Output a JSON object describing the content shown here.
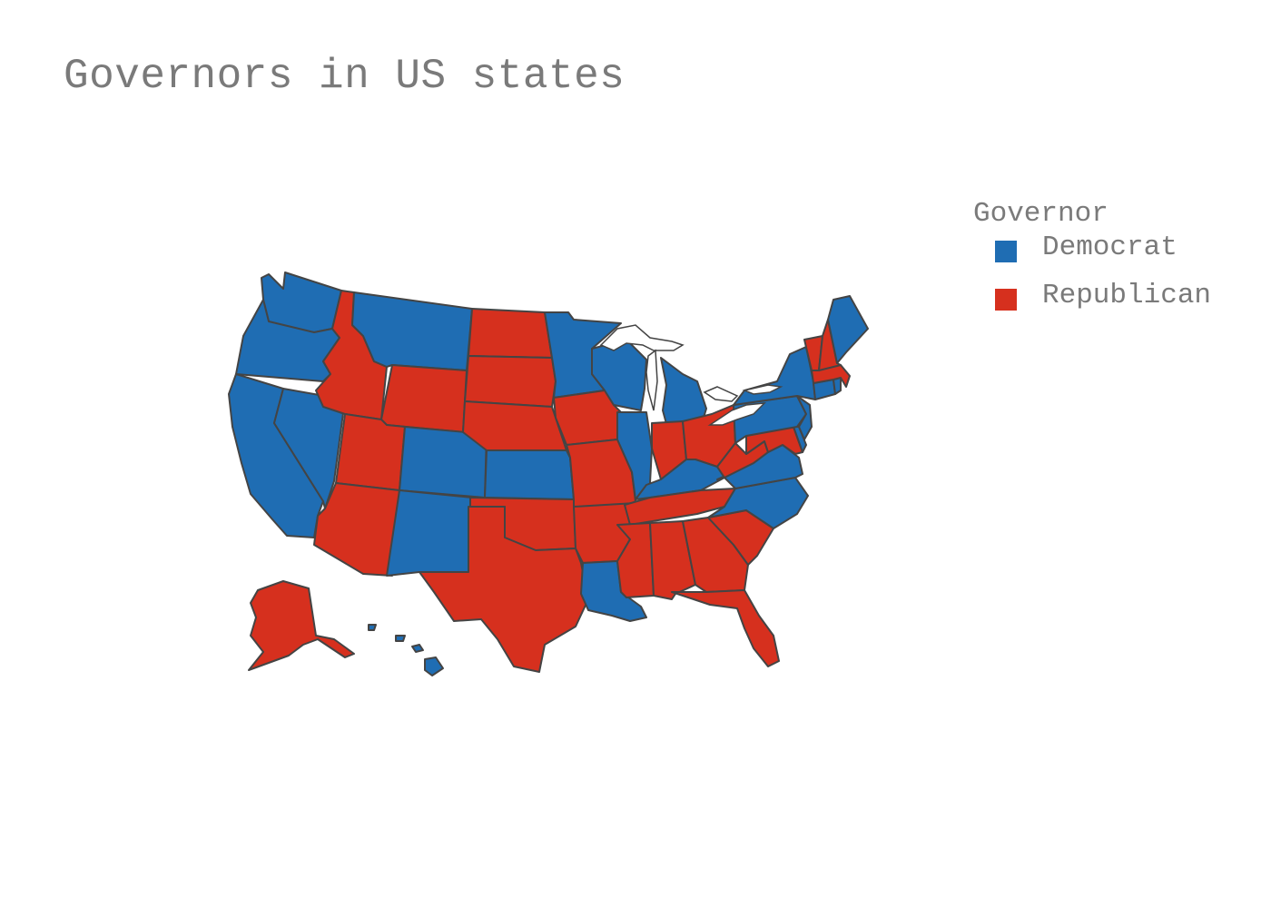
{
  "title": "Governors in US states",
  "legend": {
    "title": "Governor",
    "items": [
      {
        "label": "Democrat",
        "color": "#1f6db3"
      },
      {
        "label": "Republican",
        "color": "#d6301e"
      }
    ]
  },
  "colors": {
    "Democrat": "#1f6db3",
    "Republican": "#d6301e",
    "border": "#444444"
  },
  "map_data": {
    "type": "choropleth",
    "region": "USA states",
    "category": "Governor",
    "states": {
      "WA": "Democrat",
      "OR": "Democrat",
      "CA": "Democrat",
      "NV": "Democrat",
      "ID": "Republican",
      "MT": "Democrat",
      "WY": "Republican",
      "UT": "Republican",
      "AZ": "Republican",
      "CO": "Democrat",
      "NM": "Democrat",
      "ND": "Republican",
      "SD": "Republican",
      "NE": "Republican",
      "KS": "Democrat",
      "OK": "Republican",
      "TX": "Republican",
      "MN": "Democrat",
      "IA": "Republican",
      "MO": "Republican",
      "AR": "Republican",
      "LA": "Democrat",
      "WI": "Democrat",
      "IL": "Democrat",
      "MI": "Democrat",
      "IN": "Republican",
      "OH": "Republican",
      "KY": "Democrat",
      "TN": "Republican",
      "MS": "Republican",
      "AL": "Republican",
      "GA": "Republican",
      "FL": "Republican",
      "SC": "Republican",
      "NC": "Democrat",
      "VA": "Democrat",
      "WV": "Republican",
      "MD": "Republican",
      "DE": "Democrat",
      "PA": "Democrat",
      "NJ": "Democrat",
      "NY": "Democrat",
      "CT": "Democrat",
      "RI": "Democrat",
      "MA": "Republican",
      "VT": "Republican",
      "NH": "Republican",
      "ME": "Democrat",
      "AK": "Republican",
      "HI": "Democrat"
    }
  }
}
